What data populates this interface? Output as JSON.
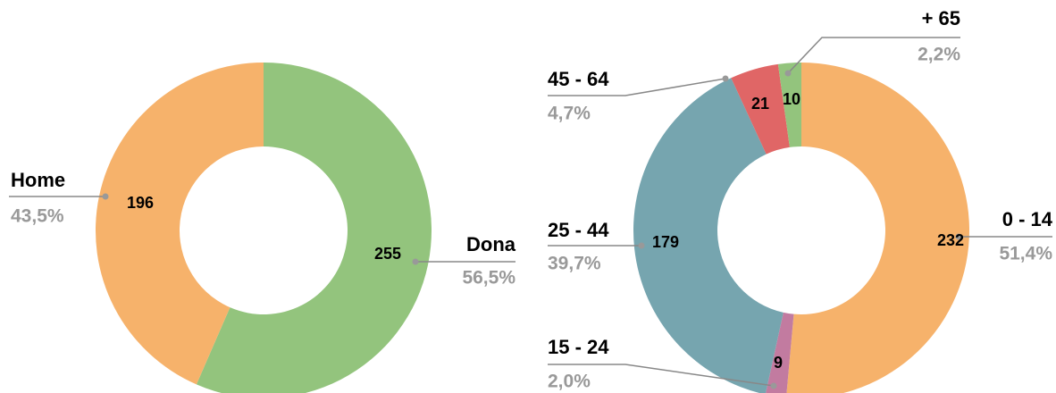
{
  "chart_data": [
    {
      "type": "pie",
      "donut": true,
      "categories": [
        "Dona",
        "Home"
      ],
      "values": [
        255,
        196
      ],
      "colors": [
        "#93c47d",
        "#f6b26b"
      ],
      "percentage_labels": [
        "56,5%",
        "43,5%"
      ]
    },
    {
      "type": "pie",
      "donut": true,
      "categories": [
        "0 - 14",
        "15 - 24",
        "25 - 44",
        "45 - 64",
        "+ 65"
      ],
      "values": [
        232,
        9,
        179,
        21,
        10
      ],
      "colors": [
        "#f6b26b",
        "#c27ba0",
        "#76a5af",
        "#e06666",
        "#93c47d"
      ],
      "percentage_labels": [
        "51,4%",
        "2,0%",
        "39,7%",
        "4,7%",
        "2,2%"
      ]
    }
  ]
}
